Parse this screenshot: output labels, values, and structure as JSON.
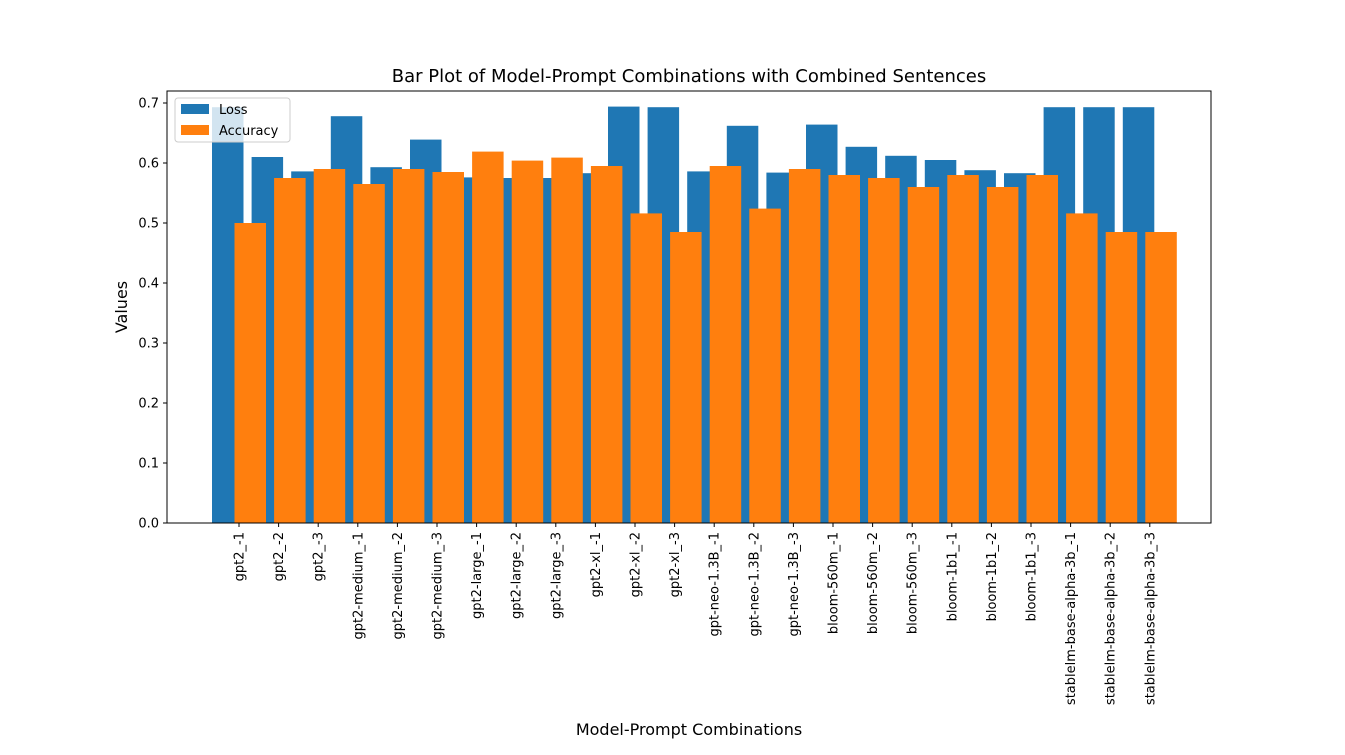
{
  "chart_data": {
    "type": "bar",
    "title": "Bar Plot of Model-Prompt Combinations with Combined Sentences",
    "xlabel": "Model-Prompt Combinations",
    "ylabel": "Values",
    "ylim": [
      0,
      0.72
    ],
    "yticks": [
      "0.0",
      "0.1",
      "0.2",
      "0.3",
      "0.4",
      "0.5",
      "0.6",
      "0.7"
    ],
    "ytick_values": [
      0.0,
      0.1,
      0.2,
      0.3,
      0.4,
      0.5,
      0.6,
      0.7
    ],
    "grid": false,
    "legend_position": "top-left",
    "categories": [
      "gpt2_-1",
      "gpt2_-2",
      "gpt2_-3",
      "gpt2-medium_-1",
      "gpt2-medium_-2",
      "gpt2-medium_-3",
      "gpt2-large_-1",
      "gpt2-large_-2",
      "gpt2-large_-3",
      "gpt2-xl_-1",
      "gpt2-xl_-2",
      "gpt2-xl_-3",
      "gpt-neo-1.3B_-1",
      "gpt-neo-1.3B_-2",
      "gpt-neo-1.3B_-3",
      "bloom-560m_-1",
      "bloom-560m_-2",
      "bloom-560m_-3",
      "bloom-1b1_-1",
      "bloom-1b1_-2",
      "bloom-1b1_-3",
      "stablelm-base-alpha-3b_-1",
      "stablelm-base-alpha-3b_-2",
      "stablelm-base-alpha-3b_-3"
    ],
    "series": [
      {
        "name": "Loss",
        "color": "#1f77b4",
        "values": [
          0.693,
          0.61,
          0.586,
          0.678,
          0.593,
          0.639,
          0.576,
          0.575,
          0.575,
          0.583,
          0.694,
          0.693,
          0.586,
          0.662,
          0.584,
          0.664,
          0.627,
          0.612,
          0.605,
          0.588,
          0.583,
          0.693,
          0.693,
          0.693
        ]
      },
      {
        "name": "Accuracy",
        "color": "#ff7f0e",
        "values": [
          0.5,
          0.575,
          0.59,
          0.565,
          0.59,
          0.585,
          0.619,
          0.604,
          0.609,
          0.595,
          0.516,
          0.485,
          0.595,
          0.524,
          0.59,
          0.58,
          0.575,
          0.56,
          0.58,
          0.56,
          0.58,
          0.516,
          0.485,
          0.485
        ]
      }
    ]
  }
}
